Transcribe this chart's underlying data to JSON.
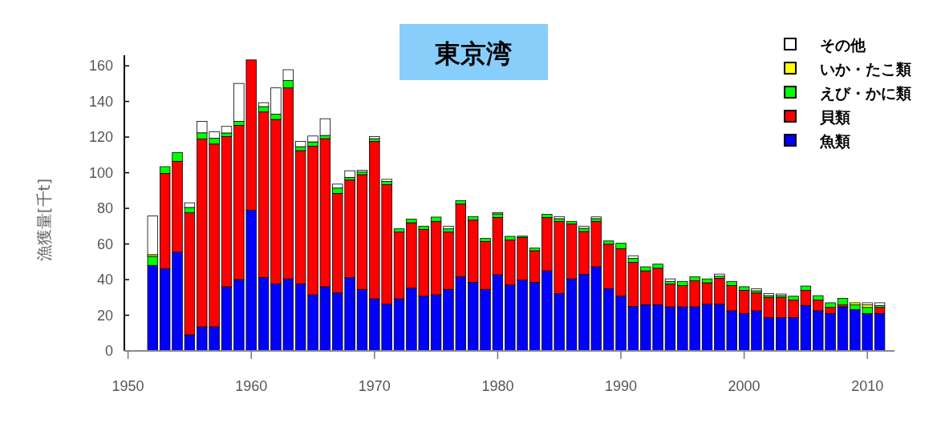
{
  "chart_data": {
    "type": "bar",
    "stacked": true,
    "title": "東京湾",
    "ylabel": "漁獲量[千t]",
    "x": [
      1952,
      1953,
      1954,
      1955,
      1956,
      1957,
      1958,
      1959,
      1960,
      1961,
      1962,
      1963,
      1964,
      1965,
      1966,
      1967,
      1968,
      1969,
      1970,
      1971,
      1972,
      1973,
      1974,
      1975,
      1976,
      1977,
      1978,
      1979,
      1980,
      1981,
      1982,
      1983,
      1984,
      1985,
      1986,
      1987,
      1988,
      1989,
      1990,
      1991,
      1992,
      1993,
      1994,
      1995,
      1996,
      1997,
      1998,
      1999,
      2000,
      2001,
      2002,
      2003,
      2004,
      2005,
      2006,
      2007,
      2008,
      2009,
      2010,
      2011
    ],
    "series": [
      {
        "name": "魚類",
        "color": "#0000ff",
        "values": [
          48,
          46,
          55.4,
          9,
          13.5,
          13.5,
          36,
          40,
          79,
          41.2,
          37.5,
          40.4,
          37.5,
          31.5,
          36,
          32.5,
          41.2,
          34.5,
          29.2,
          26.2,
          29.2,
          35.2,
          30.7,
          31.5,
          34.5,
          41.5,
          38.5,
          34.5,
          42.7,
          37,
          39.7,
          38.5,
          44.9,
          32.2,
          40.4,
          43,
          47.2,
          34.8,
          30.7,
          25,
          25.8,
          25.8,
          24.7,
          24.7,
          24.7,
          26.2,
          26.2,
          22.5,
          21,
          22.5,
          18.7,
          18.7,
          18.7,
          25.5,
          22.5,
          21,
          24.7,
          23.2,
          21,
          21
        ]
      },
      {
        "name": "貝類",
        "color": "#ff0000",
        "values": [
          0,
          53.6,
          51,
          68.5,
          105.5,
          102.6,
          84.3,
          86.6,
          84.3,
          92.9,
          92.4,
          107.2,
          74.9,
          83.4,
          83.1,
          55.9,
          54.7,
          64.4,
          88.4,
          67.1,
          37.5,
          36.7,
          37.5,
          41.2,
          32.2,
          40.9,
          34.9,
          26.9,
          32.2,
          25.2,
          24,
          17.7,
          29.9,
          40.5,
          30.8,
          24,
          25.5,
          25.1,
          26.7,
          24.7,
          19.1,
          20.6,
          12.8,
          12,
          14.7,
          12,
          14.5,
          14.2,
          13,
          10,
          11.3,
          11.3,
          9.8,
          8.5,
          6,
          3.4,
          1.1,
          0,
          0,
          3.4
        ]
      },
      {
        "name": "えび・かに類",
        "color": "#00ff00",
        "values": [
          5,
          3.8,
          4.9,
          3,
          3.4,
          3.3,
          2,
          2.2,
          0,
          3,
          3,
          4.2,
          2.2,
          2.4,
          1.8,
          3,
          1.5,
          1.5,
          1.5,
          1.8,
          1.8,
          2,
          1.8,
          2.4,
          1.8,
          1.9,
          2,
          1.7,
          2,
          2.1,
          0.7,
          1.5,
          1.8,
          1.5,
          1.5,
          1.8,
          1.5,
          1.8,
          3,
          2.2,
          2.3,
          2.3,
          1.5,
          2.3,
          2.2,
          2.2,
          1.2,
          2.3,
          2,
          1.2,
          1,
          1,
          2.2,
          2.4,
          2.5,
          2.6,
          3.7,
          2.6,
          3.4,
          1.1
        ]
      },
      {
        "name": "いか・たこ類",
        "color": "#ffff00",
        "values": [
          1,
          0,
          0,
          0,
          0,
          0,
          0,
          0,
          0,
          0,
          0,
          0,
          0,
          0,
          0,
          0,
          0,
          0,
          0,
          0,
          0,
          0,
          0,
          0,
          0,
          0,
          0,
          0,
          0,
          0,
          0,
          0,
          0,
          0,
          0,
          0,
          0,
          0,
          0,
          0,
          0,
          0,
          0,
          0,
          0,
          0,
          0,
          0,
          0,
          0,
          0,
          0,
          0,
          0,
          0,
          0,
          0,
          1.2,
          1.4,
          0
        ]
      },
      {
        "name": "その他",
        "color": "#ffffff",
        "values": [
          21.7,
          0,
          0,
          2.6,
          6.4,
          3.6,
          3.7,
          21.3,
          0,
          2.2,
          14.7,
          6,
          3,
          3.3,
          9.4,
          2.2,
          3.7,
          1,
          1.2,
          1.2,
          0,
          0,
          0,
          0,
          1.5,
          0,
          0,
          0,
          0.7,
          0,
          0,
          0,
          0,
          1.2,
          0,
          1.2,
          1,
          0,
          0,
          1.5,
          0,
          0,
          1.4,
          0,
          0,
          0,
          1.2,
          0,
          0,
          1.1,
          1.2,
          0.9,
          0,
          0,
          0,
          0,
          0,
          0,
          1.2,
          1.5
        ]
      }
    ],
    "xlim": [
      1949.7,
      2012.2
    ],
    "xticks": [
      1950,
      1960,
      1970,
      1980,
      1990,
      2000,
      2010
    ],
    "ylim": [
      0,
      165
    ],
    "yticks": [
      0,
      20,
      40,
      60,
      80,
      100,
      120,
      140,
      160
    ],
    "legend": "top right"
  }
}
